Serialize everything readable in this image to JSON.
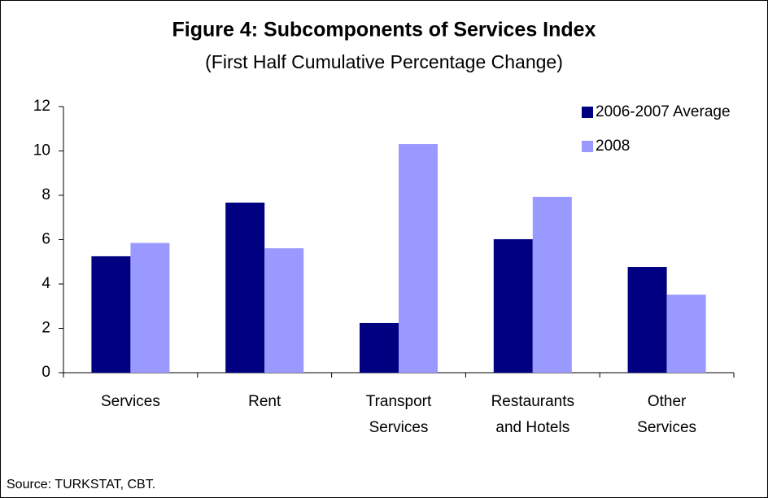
{
  "chart_data": {
    "type": "bar",
    "title": "Figure 4: Subcomponents of Services Index",
    "subtitle": "(First Half Cumulative Percentage Change)",
    "categories": [
      "Services",
      "Rent",
      "Transport\nServices",
      "Restaurants\nand Hotels",
      "Other\nServices"
    ],
    "series": [
      {
        "name": "2006-2007 Average",
        "color": "#000080",
        "values": [
          5.25,
          7.67,
          2.24,
          6.02,
          4.77
        ]
      },
      {
        "name": "2008",
        "color": "#9999ff",
        "values": [
          5.85,
          5.61,
          10.31,
          7.93,
          3.52
        ]
      }
    ],
    "ylim": [
      0,
      12
    ],
    "yticks": [
      0,
      2,
      4,
      6,
      8,
      10,
      12
    ],
    "legend": "upper right",
    "source": "Source: TURKSTAT, CBT."
  }
}
